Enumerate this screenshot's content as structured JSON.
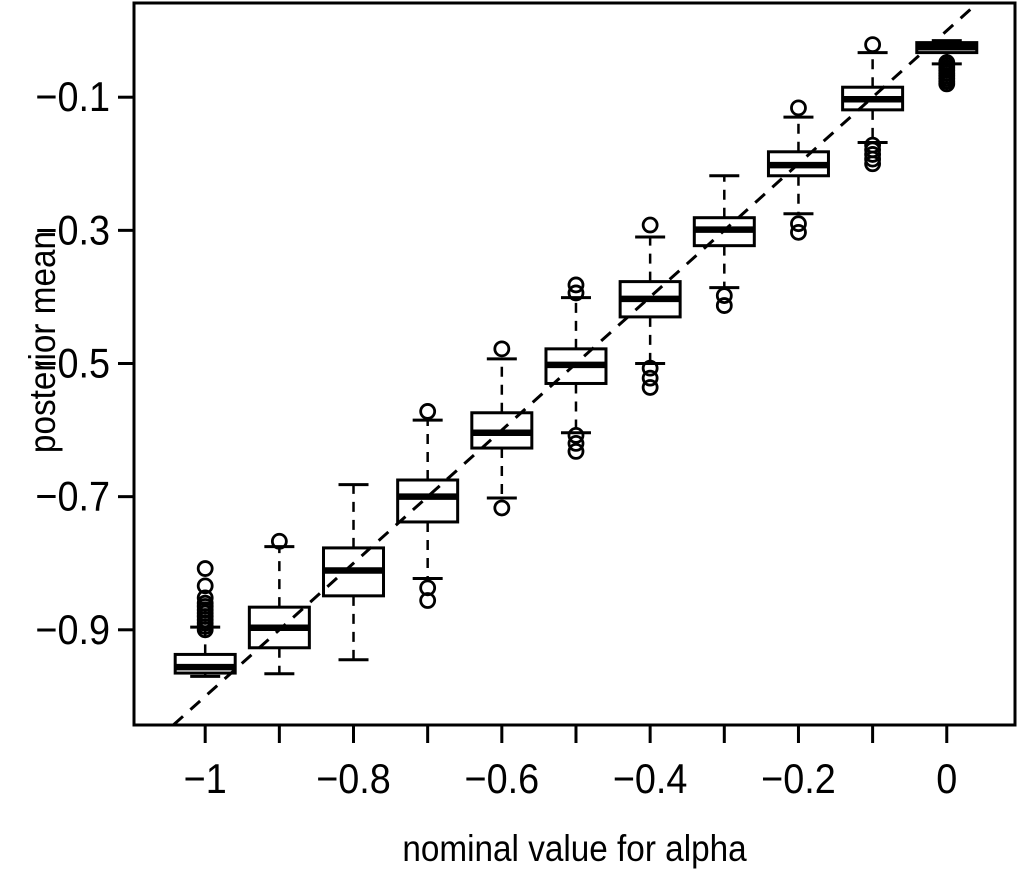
{
  "figure": {
    "background": "#ffffff",
    "foreground": "#000000"
  },
  "chart_data": {
    "type": "boxplot",
    "title": "",
    "xlabel": "nominal value for alpha",
    "ylabel": "posterior mean",
    "xlim": [
      -1.096,
      0.092
    ],
    "ylim": [
      -1.043,
      0.0415
    ],
    "grid": false,
    "legend": null,
    "x_ticks": [
      {
        "value": -1.0,
        "label": "−1"
      },
      {
        "value": -0.9,
        "label": ""
      },
      {
        "value": -0.8,
        "label": "−0.8"
      },
      {
        "value": -0.7,
        "label": ""
      },
      {
        "value": -0.6,
        "label": "−0.6"
      },
      {
        "value": -0.5,
        "label": ""
      },
      {
        "value": -0.4,
        "label": "−0.4"
      },
      {
        "value": -0.3,
        "label": ""
      },
      {
        "value": -0.2,
        "label": "−0.2"
      },
      {
        "value": -0.1,
        "label": ""
      },
      {
        "value": 0.0,
        "label": "0"
      }
    ],
    "y_ticks": [
      {
        "value": -0.9,
        "label": "−0.9"
      },
      {
        "value": -0.7,
        "label": "−0.7"
      },
      {
        "value": -0.5,
        "label": "−0.5"
      },
      {
        "value": -0.3,
        "label": "−0.3"
      },
      {
        "value": -0.1,
        "label": "−0.1"
      }
    ],
    "reference_line": {
      "slope": 1,
      "intercept": 0,
      "style": "dashed"
    },
    "boxes": [
      {
        "x": -1.0,
        "whisker_low": -0.97,
        "q1": -0.965,
        "median": -0.956,
        "q3": -0.937,
        "whisker_high": -0.896,
        "outliers": [
          -0.808,
          -0.834,
          -0.852,
          -0.86,
          -0.865,
          -0.87,
          -0.875,
          -0.88,
          -0.885,
          -0.89,
          -0.895,
          -0.9
        ]
      },
      {
        "x": -0.9,
        "whisker_low": -0.966,
        "q1": -0.927,
        "median": -0.897,
        "q3": -0.866,
        "whisker_high": -0.775,
        "outliers": [
          -0.767
        ]
      },
      {
        "x": -0.8,
        "whisker_low": -0.945,
        "q1": -0.849,
        "median": -0.811,
        "q3": -0.777,
        "whisker_high": -0.682,
        "outliers": []
      },
      {
        "x": -0.7,
        "whisker_low": -0.823,
        "q1": -0.738,
        "median": -0.7,
        "q3": -0.675,
        "whisker_high": -0.585,
        "outliers": [
          -0.572,
          -0.837,
          -0.856
        ]
      },
      {
        "x": -0.6,
        "whisker_low": -0.702,
        "q1": -0.627,
        "median": -0.604,
        "q3": -0.574,
        "whisker_high": -0.493,
        "outliers": [
          -0.478,
          -0.717
        ]
      },
      {
        "x": -0.5,
        "whisker_low": -0.604,
        "q1": -0.53,
        "median": -0.502,
        "q3": -0.478,
        "whisker_high": -0.401,
        "outliers": [
          -0.382,
          -0.394,
          -0.608,
          -0.62,
          -0.632
        ]
      },
      {
        "x": -0.4,
        "whisker_low": -0.5,
        "q1": -0.43,
        "median": -0.403,
        "q3": -0.377,
        "whisker_high": -0.31,
        "outliers": [
          -0.292,
          -0.507,
          -0.522,
          -0.536
        ]
      },
      {
        "x": -0.3,
        "whisker_low": -0.386,
        "q1": -0.323,
        "median": -0.299,
        "q3": -0.281,
        "whisker_high": -0.218,
        "outliers": [
          -0.398,
          -0.413
        ]
      },
      {
        "x": -0.2,
        "whisker_low": -0.275,
        "q1": -0.218,
        "median": -0.202,
        "q3": -0.182,
        "whisker_high": -0.13,
        "outliers": [
          -0.116,
          -0.29,
          -0.303
        ]
      },
      {
        "x": -0.1,
        "whisker_low": -0.168,
        "q1": -0.119,
        "median": -0.103,
        "q3": -0.085,
        "whisker_high": -0.033,
        "outliers": [
          -0.021,
          -0.172,
          -0.179,
          -0.186,
          -0.193,
          -0.2
        ]
      },
      {
        "x": 0.0,
        "whisker_low": -0.05,
        "q1": -0.033,
        "median": -0.025,
        "q3": -0.018,
        "whisker_high": -0.015,
        "outliers": [
          -0.048,
          -0.052,
          -0.056,
          -0.06,
          -0.064,
          -0.068,
          -0.072,
          -0.076,
          -0.08
        ]
      }
    ]
  }
}
